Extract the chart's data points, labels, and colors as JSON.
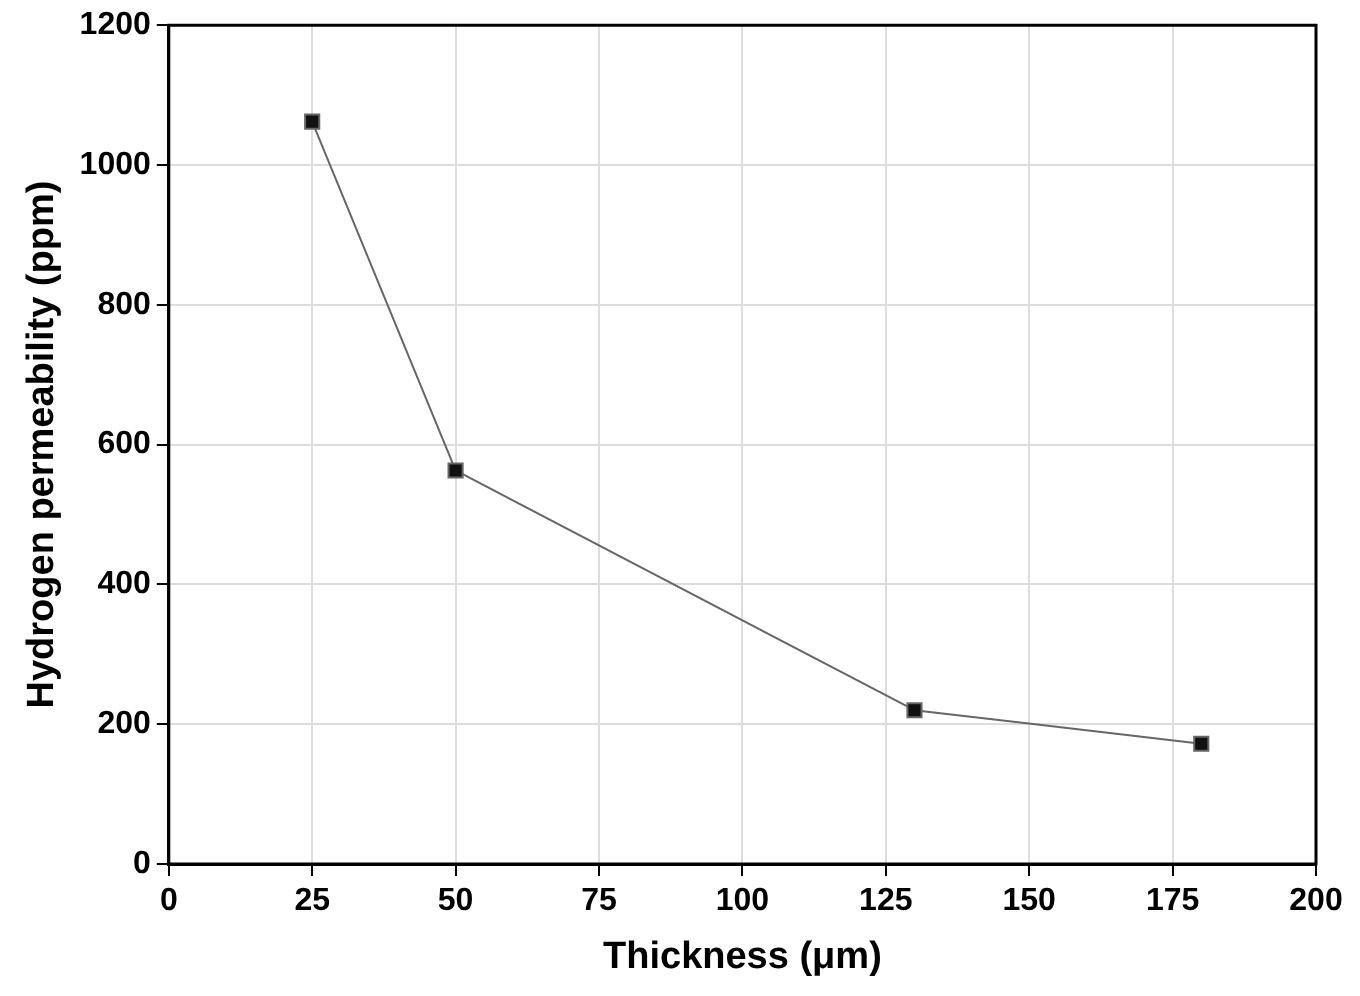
{
  "chart_data": {
    "type": "line",
    "xlabel": "Thickness (μm)",
    "ylabel": "Hydrogen permeability (ppm)",
    "x": [
      25,
      50,
      130,
      180
    ],
    "series": [
      {
        "color": "#111111",
        "values": [
          1062,
          563,
          220,
          172
        ]
      }
    ],
    "xlim": [
      0,
      200
    ],
    "xticks": [
      0,
      25,
      50,
      75,
      100,
      125,
      150,
      175,
      200
    ],
    "ylim": [
      0,
      1200
    ],
    "yticks": [
      0,
      200,
      400,
      600,
      800,
      1000,
      1200
    ],
    "grid": true,
    "marker": "square",
    "line_style": "solid",
    "legend": false
  }
}
